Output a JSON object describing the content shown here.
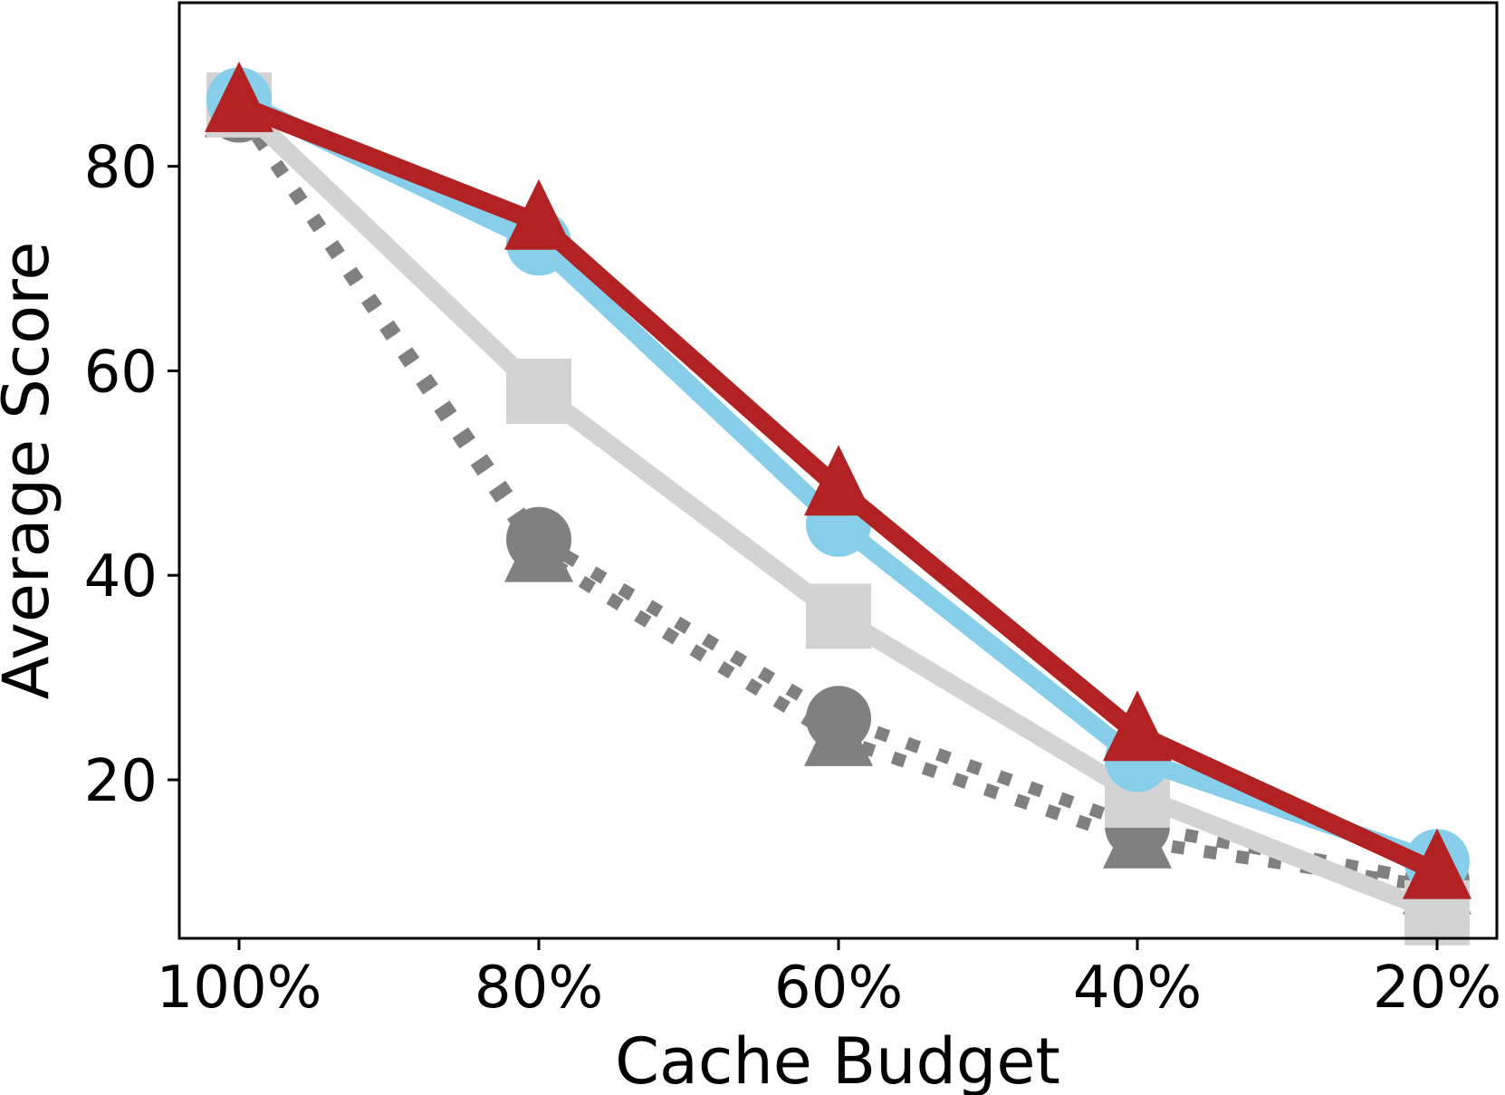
{
  "chart_data": {
    "type": "line",
    "title": "",
    "xlabel": "Cache Budget",
    "ylabel": "Average Score",
    "categories": [
      "100%",
      "80%",
      "60%",
      "40%",
      "20%"
    ],
    "ylim": [
      4.5,
      96
    ],
    "yticks": [
      20,
      40,
      60,
      80
    ],
    "grid": false,
    "legend": "none",
    "series": [
      {
        "values": [
          85.5,
          42.0,
          24.0,
          14.0,
          9.5
        ],
        "color": "#808080",
        "marker": "triangle",
        "linestyle": "dotted"
      },
      {
        "values": [
          85.5,
          43.5,
          26.0,
          15.5,
          10.0
        ],
        "color": "#808080",
        "marker": "circle",
        "linestyle": "dotted"
      },
      {
        "values": [
          86.0,
          58.0,
          36.0,
          18.5,
          7.0
        ],
        "color": "#d3d3d3",
        "marker": "square",
        "linestyle": "solid"
      },
      {
        "values": [
          86.5,
          72.5,
          45.0,
          22.0,
          12.0
        ],
        "color": "#87ceeb",
        "marker": "circle",
        "linestyle": "solid"
      },
      {
        "values": [
          86.0,
          74.5,
          48.5,
          24.5,
          11.0
        ],
        "color": "#b22222",
        "marker": "triangle",
        "linestyle": "solid"
      }
    ]
  }
}
